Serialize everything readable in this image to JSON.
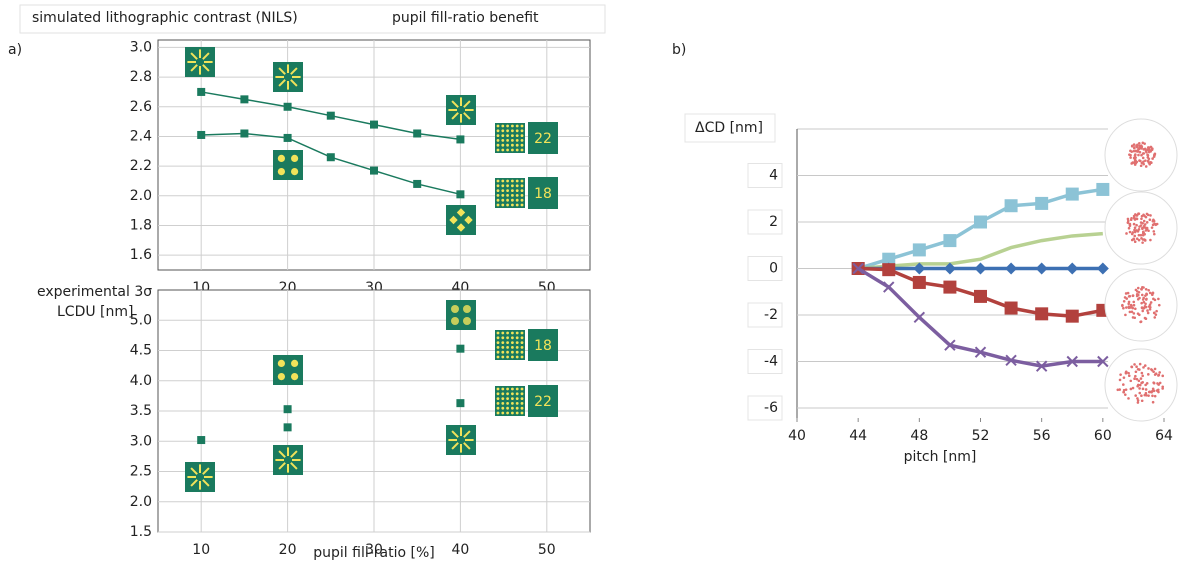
{
  "chart_data": [
    {
      "type": "line",
      "panel": "a)",
      "title": "simulated lithographic contrast (NILS)",
      "subtitle": "pupil fill-ratio benefit",
      "xlim": [
        5,
        55
      ],
      "xticks": [
        10,
        20,
        30,
        40,
        50
      ],
      "ylim": [
        1.5,
        3.05
      ],
      "yticks": [
        1.6,
        1.8,
        {
          "value": 2,
          "label": "2.0"
        },
        2.2,
        2.4,
        2.6,
        2.8,
        {
          "value": 3,
          "label": "3.0"
        }
      ],
      "grid": "both",
      "series": [
        {
          "name": "22",
          "color": "#1a7a5e",
          "marker": "square",
          "x": [
            10,
            15,
            20,
            25,
            30,
            35,
            40
          ],
          "values": [
            2.7,
            2.65,
            2.6,
            2.54,
            2.48,
            2.42,
            2.38
          ]
        },
        {
          "name": "18",
          "color": "#1a7a5e",
          "marker": "square",
          "x": [
            10,
            15,
            20,
            25,
            30,
            35,
            40
          ],
          "values": [
            2.41,
            2.42,
            2.39,
            2.26,
            2.17,
            2.08,
            2.01
          ]
        }
      ]
    },
    {
      "type": "scatter",
      "ylabel": [
        "experimental 3σ",
        "LCDU [nm]"
      ],
      "xlabel": "pupil fill-ratio [%]",
      "xlim": [
        5,
        55
      ],
      "xticks": [
        10,
        20,
        30,
        40,
        50
      ],
      "ylim": [
        1.5,
        5.5
      ],
      "yticks": [
        1.5,
        {
          "value": 2,
          "label": "2.0"
        },
        2.5,
        {
          "value": 3,
          "label": "3.0"
        },
        3.5,
        {
          "value": 4,
          "label": "4.0"
        },
        4.5,
        {
          "value": 5,
          "label": "5.0"
        }
      ],
      "grid": "both",
      "series": [
        {
          "name": "18",
          "color": "#1a7a5e",
          "marker": "square",
          "x": [
            20,
            40
          ],
          "values": [
            3.53,
            4.53
          ]
        },
        {
          "name": "22",
          "color": "#1a7a5e",
          "marker": "square",
          "x": [
            10,
            20,
            40
          ],
          "values": [
            3.02,
            3.23,
            3.63
          ]
        }
      ]
    },
    {
      "type": "line",
      "panel": "b)",
      "ylabel": "ΔCD [nm]",
      "xlabel": "pitch [nm]",
      "xlim": [
        40,
        64
      ],
      "xticks": [
        40,
        44,
        48,
        52,
        56,
        60,
        64
      ],
      "ylim": [
        -6,
        6
      ],
      "yticks": [
        -6,
        -4,
        -2,
        0,
        2,
        4
      ],
      "grid": "y",
      "series": [
        {
          "color": "#8cc3d6",
          "marker": "square",
          "x": [
            44,
            46,
            48,
            50,
            52,
            54,
            56,
            58,
            60
          ],
          "values": [
            0,
            0.4,
            0.8,
            1.2,
            2.0,
            2.7,
            2.8,
            3.2,
            3.4
          ]
        },
        {
          "color": "#b8d192",
          "marker": "none",
          "x": [
            44,
            46,
            48,
            50,
            52,
            54,
            56,
            58,
            60
          ],
          "values": [
            0,
            0.1,
            0.2,
            0.2,
            0.4,
            0.9,
            1.2,
            1.4,
            1.5
          ]
        },
        {
          "color": "#3d70b3",
          "marker": "diamond",
          "x": [
            44,
            46,
            48,
            50,
            52,
            54,
            56,
            58,
            60
          ],
          "values": [
            0,
            0,
            0,
            0,
            0,
            0,
            0,
            0,
            0
          ]
        },
        {
          "color": "#b2413d",
          "marker": "square",
          "x": [
            44,
            46,
            48,
            50,
            52,
            54,
            56,
            58,
            60
          ],
          "values": [
            0,
            -0.05,
            -0.6,
            -0.8,
            -1.2,
            -1.7,
            -1.95,
            -2.05,
            -1.8
          ]
        },
        {
          "color": "#7c5ea0",
          "marker": "x",
          "x": [
            44,
            46,
            48,
            50,
            52,
            54,
            56,
            58,
            60
          ],
          "values": [
            0,
            -0.8,
            -2.1,
            -3.3,
            -3.6,
            -3.95,
            -4.2,
            -4.0,
            -4.0
          ]
        }
      ]
    }
  ]
}
